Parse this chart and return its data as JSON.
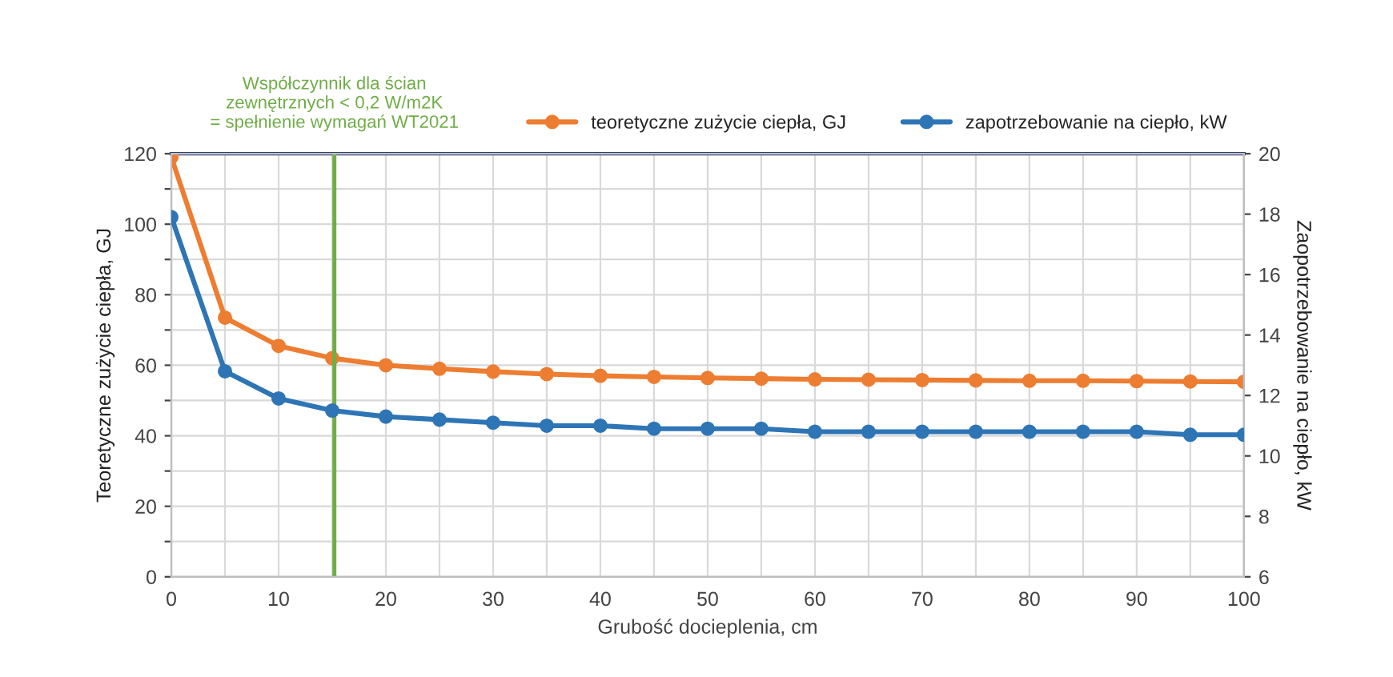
{
  "chart_data": {
    "type": "line",
    "xlabel": "Grubość docieplenia, cm",
    "ylabel": "Teoretyczne zużycie ciepła, GJ",
    "y2label": "Zaopotrzebowanie na ciepło, kW",
    "x": [
      0,
      5,
      10,
      15,
      20,
      25,
      30,
      35,
      40,
      45,
      50,
      55,
      60,
      65,
      70,
      75,
      80,
      85,
      90,
      95,
      100
    ],
    "series": [
      {
        "name": "teoretyczne zużycie ciepła, GJ",
        "color": "#ed7d31",
        "values": [
          119,
          73.5,
          65.5,
          62,
          60,
          59,
          58.2,
          57.5,
          57,
          56.7,
          56.4,
          56.2,
          56,
          55.9,
          55.8,
          55.7,
          55.6,
          55.6,
          55.5,
          55.4,
          55.3
        ]
      },
      {
        "name": "zapotrzebowanie na ciepło, kW",
        "color": "#2e75b6",
        "axis": "y2",
        "values": [
          17.9,
          12.8,
          11.9,
          11.5,
          11.3,
          11.2,
          11.1,
          11.0,
          11.0,
          10.9,
          10.9,
          10.9,
          10.8,
          10.8,
          10.8,
          10.8,
          10.8,
          10.8,
          10.8,
          10.7,
          10.7
        ]
      }
    ],
    "xlim": [
      0,
      100
    ],
    "xticks": [
      0,
      {
        "value": 5,
        "label": null
      },
      10,
      {
        "value": 15,
        "label": null
      },
      20,
      {
        "value": 25,
        "label": null
      },
      30,
      {
        "value": 35,
        "label": null
      },
      40,
      {
        "value": 45,
        "label": null
      },
      50,
      {
        "value": 55,
        "label": null
      },
      60,
      {
        "value": 65,
        "label": null
      },
      70,
      {
        "value": 75,
        "label": null
      },
      80,
      {
        "value": 85,
        "label": null
      },
      90,
      {
        "value": 95,
        "label": null
      },
      100
    ],
    "ylim": [
      0,
      120
    ],
    "yticks": [
      0,
      {
        "value": 10,
        "label": null
      },
      20,
      {
        "value": 30,
        "label": null
      },
      40,
      {
        "value": 50,
        "label": null
      },
      60,
      {
        "value": 70,
        "label": null
      },
      80,
      {
        "value": 90,
        "label": null
      },
      100,
      {
        "value": 110,
        "label": null
      },
      120
    ],
    "y2lim": [
      6,
      20
    ],
    "y2ticks": [
      6,
      8,
      10,
      12,
      14,
      16,
      18,
      20
    ],
    "ref_lines": [
      {
        "axis": "x",
        "value": 15.2,
        "label": "Współczynnik dla ścian\nzewnętrznych < 0,2 W/m2K\n= spełnienie wymagań WT2021",
        "color": "#70ad47"
      }
    ],
    "grid": true,
    "legend": "top right",
    "marker": "circle",
    "line_style": "solid"
  }
}
